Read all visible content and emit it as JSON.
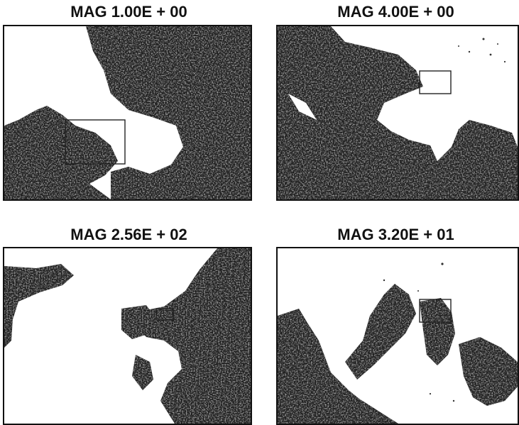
{
  "panels": [
    {
      "id": "p1",
      "caption": "MAG 1.00E + 00",
      "ink": "#1e1e1e",
      "zoom_box_color": "#222222"
    },
    {
      "id": "p2",
      "caption": "MAG 4.00E + 00",
      "ink": "#1e1e1e",
      "zoom_box_color": "#222222"
    },
    {
      "id": "p3",
      "caption": "MAG 2.56E + 02",
      "ink": "#1e1e1e",
      "zoom_box_color": "#222222"
    },
    {
      "id": "p4",
      "caption": "MAG 3.20E + 01",
      "ink": "#1e1e1e",
      "zoom_box_color": "#222222"
    }
  ]
}
